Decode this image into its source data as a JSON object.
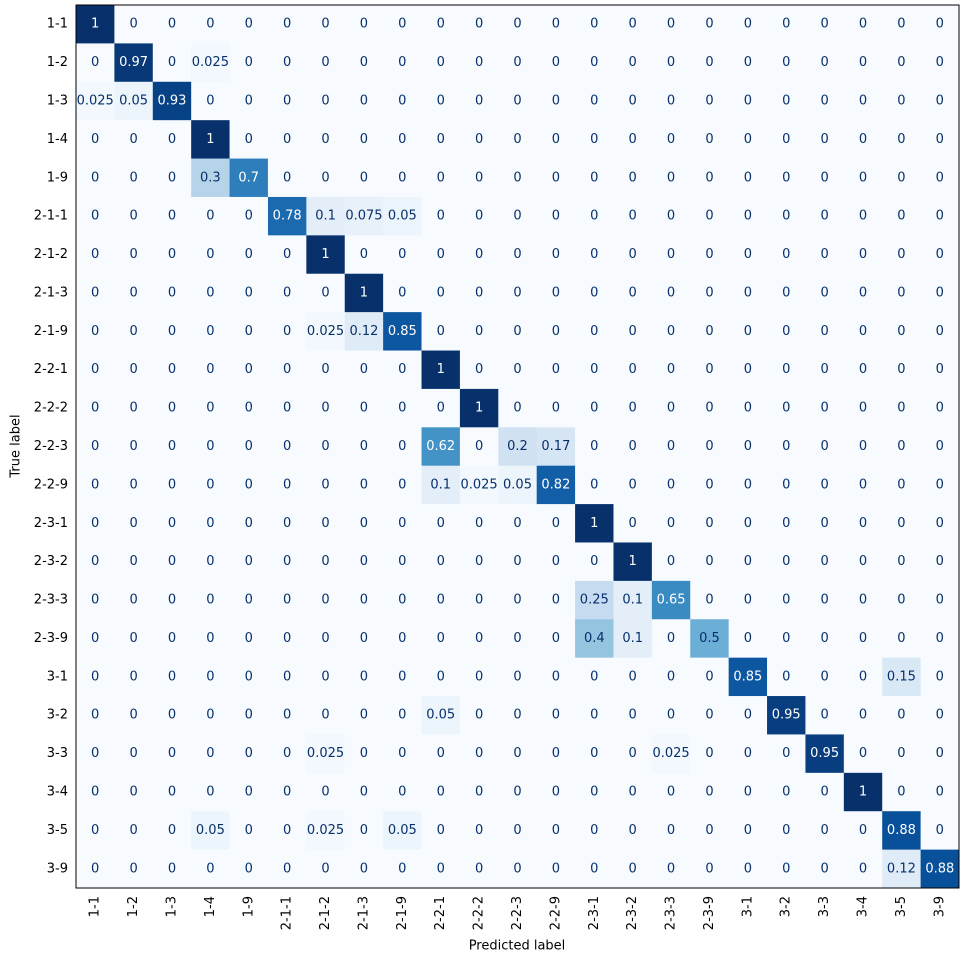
{
  "chart_data": {
    "type": "heatmap",
    "colormap": "Blues",
    "xlabel": "Predicted label",
    "ylabel": "True label",
    "categories": [
      "1-1",
      "1-2",
      "1-3",
      "1-4",
      "1-9",
      "2-1-1",
      "2-1-2",
      "2-1-3",
      "2-1-9",
      "2-2-1",
      "2-2-2",
      "2-2-3",
      "2-2-9",
      "2-3-1",
      "2-3-2",
      "2-3-3",
      "2-3-9",
      "3-1",
      "3-2",
      "3-3",
      "3-4",
      "3-5",
      "3-9"
    ],
    "matrix": [
      [
        1,
        0,
        0,
        0,
        0,
        0,
        0,
        0,
        0,
        0,
        0,
        0,
        0,
        0,
        0,
        0,
        0,
        0,
        0,
        0,
        0,
        0,
        0
      ],
      [
        0,
        0.97,
        0,
        0.025,
        0,
        0,
        0,
        0,
        0,
        0,
        0,
        0,
        0,
        0,
        0,
        0,
        0,
        0,
        0,
        0,
        0,
        0,
        0
      ],
      [
        0.025,
        0.05,
        0.93,
        0,
        0,
        0,
        0,
        0,
        0,
        0,
        0,
        0,
        0,
        0,
        0,
        0,
        0,
        0,
        0,
        0,
        0,
        0,
        0
      ],
      [
        0,
        0,
        0,
        1,
        0,
        0,
        0,
        0,
        0,
        0,
        0,
        0,
        0,
        0,
        0,
        0,
        0,
        0,
        0,
        0,
        0,
        0,
        0
      ],
      [
        0,
        0,
        0,
        0.3,
        0.7,
        0,
        0,
        0,
        0,
        0,
        0,
        0,
        0,
        0,
        0,
        0,
        0,
        0,
        0,
        0,
        0,
        0,
        0
      ],
      [
        0,
        0,
        0,
        0,
        0,
        0.78,
        0.1,
        0.075,
        0.05,
        0,
        0,
        0,
        0,
        0,
        0,
        0,
        0,
        0,
        0,
        0,
        0,
        0,
        0
      ],
      [
        0,
        0,
        0,
        0,
        0,
        0,
        1,
        0,
        0,
        0,
        0,
        0,
        0,
        0,
        0,
        0,
        0,
        0,
        0,
        0,
        0,
        0,
        0
      ],
      [
        0,
        0,
        0,
        0,
        0,
        0,
        0,
        1,
        0,
        0,
        0,
        0,
        0,
        0,
        0,
        0,
        0,
        0,
        0,
        0,
        0,
        0,
        0
      ],
      [
        0,
        0,
        0,
        0,
        0,
        0,
        0.025,
        0.12,
        0.85,
        0,
        0,
        0,
        0,
        0,
        0,
        0,
        0,
        0,
        0,
        0,
        0,
        0,
        0
      ],
      [
        0,
        0,
        0,
        0,
        0,
        0,
        0,
        0,
        0,
        1,
        0,
        0,
        0,
        0,
        0,
        0,
        0,
        0,
        0,
        0,
        0,
        0,
        0
      ],
      [
        0,
        0,
        0,
        0,
        0,
        0,
        0,
        0,
        0,
        0,
        1,
        0,
        0,
        0,
        0,
        0,
        0,
        0,
        0,
        0,
        0,
        0,
        0
      ],
      [
        0,
        0,
        0,
        0,
        0,
        0,
        0,
        0,
        0,
        0.62,
        0,
        0.2,
        0.17,
        0,
        0,
        0,
        0,
        0,
        0,
        0,
        0,
        0,
        0
      ],
      [
        0,
        0,
        0,
        0,
        0,
        0,
        0,
        0,
        0,
        0.1,
        0.025,
        0.05,
        0.82,
        0,
        0,
        0,
        0,
        0,
        0,
        0,
        0,
        0,
        0
      ],
      [
        0,
        0,
        0,
        0,
        0,
        0,
        0,
        0,
        0,
        0,
        0,
        0,
        0,
        1,
        0,
        0,
        0,
        0,
        0,
        0,
        0,
        0,
        0
      ],
      [
        0,
        0,
        0,
        0,
        0,
        0,
        0,
        0,
        0,
        0,
        0,
        0,
        0,
        0,
        1,
        0,
        0,
        0,
        0,
        0,
        0,
        0,
        0
      ],
      [
        0,
        0,
        0,
        0,
        0,
        0,
        0,
        0,
        0,
        0,
        0,
        0,
        0,
        0.25,
        0.1,
        0.65,
        0,
        0,
        0,
        0,
        0,
        0,
        0
      ],
      [
        0,
        0,
        0,
        0,
        0,
        0,
        0,
        0,
        0,
        0,
        0,
        0,
        0,
        0.4,
        0.1,
        0,
        0.5,
        0,
        0,
        0,
        0,
        0,
        0
      ],
      [
        0,
        0,
        0,
        0,
        0,
        0,
        0,
        0,
        0,
        0,
        0,
        0,
        0,
        0,
        0,
        0,
        0,
        0.85,
        0,
        0,
        0,
        0.15,
        0
      ],
      [
        0,
        0,
        0,
        0,
        0,
        0,
        0,
        0,
        0,
        0.05,
        0,
        0,
        0,
        0,
        0,
        0,
        0,
        0,
        0.95,
        0,
        0,
        0,
        0
      ],
      [
        0,
        0,
        0,
        0,
        0,
        0,
        0.025,
        0,
        0,
        0,
        0,
        0,
        0,
        0,
        0,
        0.025,
        0,
        0,
        0,
        0.95,
        0,
        0,
        0
      ],
      [
        0,
        0,
        0,
        0,
        0,
        0,
        0,
        0,
        0,
        0,
        0,
        0,
        0,
        0,
        0,
        0,
        0,
        0,
        0,
        0,
        1,
        0,
        0
      ],
      [
        0,
        0,
        0,
        0.05,
        0,
        0,
        0.025,
        0,
        0.05,
        0,
        0,
        0,
        0,
        0,
        0,
        0,
        0,
        0,
        0,
        0,
        0,
        0.88,
        0
      ],
      [
        0,
        0,
        0,
        0,
        0,
        0,
        0,
        0,
        0,
        0,
        0,
        0,
        0,
        0,
        0,
        0,
        0,
        0,
        0,
        0,
        0,
        0.12,
        0.88
      ]
    ]
  }
}
